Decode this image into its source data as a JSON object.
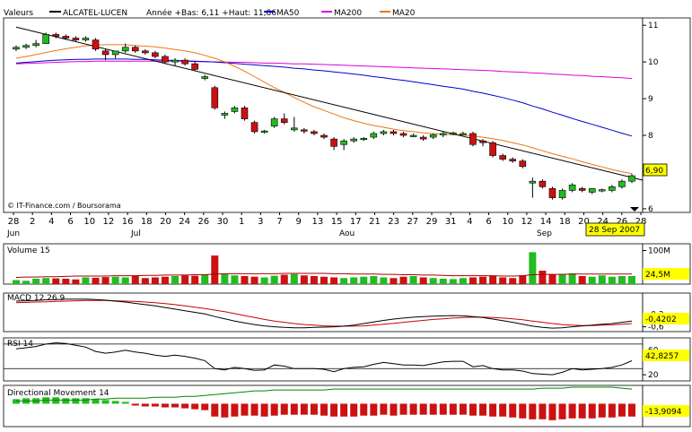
{
  "header": {
    "label": "Valeurs",
    "ticker": "ALCATEL-LUCEN",
    "info": "Année +Bas: 6,11 +Haut: 11,86",
    "legend": [
      {
        "name": "MA50",
        "color": "#0000cc"
      },
      {
        "name": "MA200",
        "color": "#dd00dd"
      },
      {
        "name": "MA20",
        "color": "#ee7711"
      }
    ]
  },
  "watermark": "© IT-Finance.com / Boursorama",
  "price_box": {
    "label": "6,90",
    "bg": "#ffff00"
  },
  "date_box": {
    "label": "28 Sep 2007",
    "bg": "#ffff00"
  },
  "colors": {
    "up": "#22bb22",
    "down": "#cc1111",
    "grid": "#000000"
  },
  "chart_data": [
    {
      "type": "candlestick",
      "title": "ALCATEL-LUCEN",
      "ylim": [
        5.9,
        11.2
      ],
      "yticks": [
        "6",
        "7",
        "8",
        "9",
        "10",
        "11"
      ],
      "xticks": [
        "28",
        "2",
        "4",
        "6",
        "10",
        "12",
        "16",
        "18",
        "20",
        "24",
        "26",
        "30",
        "1",
        "3",
        "7",
        "9",
        "13",
        "15",
        "17",
        "21",
        "23",
        "27",
        "29",
        "31",
        "4",
        "6",
        "10",
        "12",
        "14",
        "18",
        "20",
        "24",
        "26",
        "28"
      ],
      "months": [
        "Jun",
        "Jul",
        "Aou",
        "Sep"
      ],
      "ohlc": [
        [
          10.35,
          10.45,
          10.3,
          10.4
        ],
        [
          10.4,
          10.5,
          10.35,
          10.45
        ],
        [
          10.45,
          10.6,
          10.4,
          10.5
        ],
        [
          10.5,
          10.8,
          10.5,
          10.75
        ],
        [
          10.75,
          10.8,
          10.65,
          10.7
        ],
        [
          10.7,
          10.75,
          10.6,
          10.65
        ],
        [
          10.65,
          10.7,
          10.55,
          10.6
        ],
        [
          10.6,
          10.7,
          10.55,
          10.65
        ],
        [
          10.6,
          10.65,
          10.3,
          10.35
        ],
        [
          10.3,
          10.35,
          10.05,
          10.2
        ],
        [
          10.2,
          10.3,
          10.1,
          10.3
        ],
        [
          10.3,
          10.5,
          10.25,
          10.4
        ],
        [
          10.4,
          10.45,
          10.25,
          10.3
        ],
        [
          10.3,
          10.35,
          10.2,
          10.25
        ],
        [
          10.25,
          10.3,
          10.1,
          10.15
        ],
        [
          10.15,
          10.2,
          9.95,
          10.0
        ],
        [
          10.0,
          10.1,
          9.9,
          10.05
        ],
        [
          10.05,
          10.1,
          9.9,
          9.95
        ],
        [
          9.95,
          10.0,
          9.75,
          9.8
        ],
        [
          9.55,
          9.65,
          9.5,
          9.6
        ],
        [
          9.3,
          9.35,
          8.7,
          8.75
        ],
        [
          8.55,
          8.65,
          8.45,
          8.6
        ],
        [
          8.65,
          8.8,
          8.6,
          8.75
        ],
        [
          8.75,
          8.8,
          8.4,
          8.45
        ],
        [
          8.35,
          8.4,
          8.05,
          8.1
        ],
        [
          8.1,
          8.15,
          8.05,
          8.12
        ],
        [
          8.25,
          8.5,
          8.2,
          8.45
        ],
        [
          8.45,
          8.6,
          8.3,
          8.35
        ],
        [
          8.15,
          8.5,
          8.1,
          8.2
        ],
        [
          8.15,
          8.2,
          8.05,
          8.12
        ],
        [
          8.1,
          8.15,
          8.0,
          8.05
        ],
        [
          8.0,
          8.05,
          7.9,
          7.95
        ],
        [
          7.9,
          7.95,
          7.6,
          7.7
        ],
        [
          7.75,
          7.9,
          7.6,
          7.85
        ],
        [
          7.85,
          7.95,
          7.8,
          7.9
        ],
        [
          7.9,
          7.95,
          7.85,
          7.92
        ],
        [
          7.95,
          8.1,
          7.9,
          8.05
        ],
        [
          8.05,
          8.15,
          8.0,
          8.1
        ],
        [
          8.1,
          8.15,
          8.0,
          8.05
        ],
        [
          8.05,
          8.1,
          7.95,
          8.0
        ],
        [
          8.0,
          8.05,
          7.95,
          8.0
        ],
        [
          7.95,
          8.0,
          7.85,
          7.9
        ],
        [
          7.95,
          8.05,
          7.9,
          8.02
        ],
        [
          8.02,
          8.1,
          7.95,
          8.05
        ],
        [
          8.05,
          8.1,
          8.0,
          8.07
        ],
        [
          8.05,
          8.1,
          8.0,
          8.05
        ],
        [
          8.05,
          8.1,
          7.7,
          7.75
        ],
        [
          7.85,
          7.9,
          7.7,
          7.8
        ],
        [
          7.8,
          7.85,
          7.4,
          7.45
        ],
        [
          7.45,
          7.5,
          7.3,
          7.35
        ],
        [
          7.35,
          7.4,
          7.25,
          7.3
        ],
        [
          7.3,
          7.35,
          7.1,
          7.15
        ],
        [
          6.7,
          6.85,
          6.3,
          6.75
        ],
        [
          6.75,
          6.8,
          6.55,
          6.6
        ],
        [
          6.55,
          6.6,
          6.25,
          6.3
        ],
        [
          6.3,
          6.55,
          6.25,
          6.5
        ],
        [
          6.5,
          6.7,
          6.45,
          6.65
        ],
        [
          6.55,
          6.6,
          6.45,
          6.5
        ],
        [
          6.45,
          6.55,
          6.4,
          6.55
        ],
        [
          6.5,
          6.55,
          6.45,
          6.52
        ],
        [
          6.5,
          6.65,
          6.45,
          6.6
        ],
        [
          6.6,
          6.8,
          6.55,
          6.75
        ],
        [
          6.75,
          6.95,
          6.7,
          6.9
        ]
      ],
      "ma50_values": [
        9.97,
        9.99,
        10.01,
        10.03,
        10.05,
        10.06,
        10.07,
        10.07,
        10.08,
        10.08,
        10.08,
        10.08,
        10.07,
        10.07,
        10.06,
        10.05,
        10.04,
        10.03,
        10.02,
        10.01,
        10.0,
        9.98,
        9.96,
        9.94,
        9.92,
        9.9,
        9.88,
        9.86,
        9.83,
        9.81,
        9.78,
        9.76,
        9.73,
        9.7,
        9.67,
        9.64,
        9.6,
        9.57,
        9.53,
        9.5,
        9.46,
        9.42,
        9.38,
        9.34,
        9.3,
        9.26,
        9.2,
        9.15,
        9.09,
        9.03,
        8.96,
        8.89,
        8.8,
        8.72,
        8.63,
        8.55,
        8.46,
        8.38,
        8.3,
        8.22,
        8.14,
        8.06,
        7.98
      ],
      "ma200_values": [
        9.95,
        9.96,
        9.97,
        9.98,
        9.99,
        10.0,
        10.01,
        10.01,
        10.02,
        10.02,
        10.02,
        10.02,
        10.02,
        10.02,
        10.02,
        10.02,
        10.02,
        10.02,
        10.01,
        10.01,
        10.0,
        10.0,
        9.99,
        9.99,
        9.98,
        9.97,
        9.97,
        9.96,
        9.95,
        9.95,
        9.94,
        9.93,
        9.92,
        9.91,
        9.9,
        9.89,
        9.88,
        9.87,
        9.86,
        9.85,
        9.84,
        9.83,
        9.82,
        9.81,
        9.8,
        9.79,
        9.78,
        9.77,
        9.76,
        9.74,
        9.73,
        9.72,
        9.7,
        9.69,
        9.67,
        9.66,
        9.64,
        9.63,
        9.61,
        9.6,
        9.58,
        9.57,
        9.55
      ],
      "ma20_values": [
        10.1,
        10.15,
        10.2,
        10.26,
        10.31,
        10.36,
        10.4,
        10.44,
        10.46,
        10.47,
        10.47,
        10.47,
        10.45,
        10.43,
        10.41,
        10.38,
        10.34,
        10.3,
        10.25,
        10.18,
        10.1,
        10.0,
        9.88,
        9.75,
        9.6,
        9.45,
        9.3,
        9.17,
        9.03,
        8.9,
        8.78,
        8.68,
        8.58,
        8.48,
        8.4,
        8.33,
        8.27,
        8.22,
        8.17,
        8.13,
        8.1,
        8.07,
        8.05,
        8.03,
        8.02,
        8.01,
        7.98,
        7.95,
        7.91,
        7.86,
        7.8,
        7.74,
        7.66,
        7.58,
        7.5,
        7.43,
        7.36,
        7.28,
        7.21,
        7.14,
        7.07,
        7.01,
        6.96
      ],
      "trendline": [
        [
          0,
          10.95
        ],
        [
          62,
          6.98
        ]
      ]
    },
    {
      "type": "bar",
      "title": "Volume 15",
      "ylim": [
        0,
        120
      ],
      "yticks": [
        "100M"
      ],
      "value_label": "24,5M",
      "values": [
        12,
        10,
        16,
        18,
        17,
        16,
        14,
        20,
        19,
        21,
        22,
        20,
        24,
        18,
        20,
        22,
        24,
        26,
        25,
        28,
        85,
        30,
        26,
        24,
        22,
        20,
        25,
        28,
        30,
        26,
        24,
        22,
        20,
        18,
        20,
        22,
        24,
        20,
        18,
        22,
        24,
        20,
        18,
        16,
        15,
        18,
        20,
        22,
        24,
        20,
        18,
        26,
        95,
        40,
        28,
        30,
        32,
        24,
        22,
        26,
        22,
        24,
        24
      ],
      "avg_values": [
        20,
        21,
        21,
        22,
        22,
        23,
        24,
        24,
        24,
        24,
        25,
        25,
        25,
        26,
        26,
        27,
        27,
        27,
        28,
        28,
        30,
        31,
        31,
        31,
        31,
        31,
        31,
        32,
        32,
        32,
        32,
        32,
        31,
        31,
        30,
        30,
        30,
        29,
        29,
        28,
        28,
        27,
        27,
        26,
        25,
        25,
        25,
        25,
        25,
        24,
        24,
        25,
        28,
        29,
        29,
        29,
        30,
        30,
        30,
        30,
        30,
        30,
        30
      ]
    },
    {
      "type": "line",
      "title": "MACD 12 26 9",
      "ylim": [
        -0.75,
        0.45
      ],
      "yticks": [
        "-0,2",
        "-0,6"
      ],
      "value_label": "-0,4202",
      "macd_values": [
        0.2,
        0.21,
        0.22,
        0.24,
        0.25,
        0.26,
        0.26,
        0.26,
        0.25,
        0.23,
        0.2,
        0.17,
        0.13,
        0.09,
        0.05,
        0.0,
        -0.05,
        -0.1,
        -0.15,
        -0.2,
        -0.28,
        -0.35,
        -0.42,
        -0.48,
        -0.53,
        -0.57,
        -0.6,
        -0.62,
        -0.63,
        -0.63,
        -0.62,
        -0.61,
        -0.6,
        -0.58,
        -0.55,
        -0.5,
        -0.45,
        -0.4,
        -0.36,
        -0.33,
        -0.3,
        -0.28,
        -0.27,
        -0.26,
        -0.25,
        -0.26,
        -0.28,
        -0.31,
        -0.36,
        -0.41,
        -0.46,
        -0.52,
        -0.58,
        -0.62,
        -0.64,
        -0.63,
        -0.6,
        -0.57,
        -0.55,
        -0.52,
        -0.5,
        -0.46,
        -0.42
      ],
      "signal_values": [
        0.15,
        0.16,
        0.17,
        0.18,
        0.19,
        0.2,
        0.21,
        0.22,
        0.22,
        0.22,
        0.21,
        0.2,
        0.19,
        0.17,
        0.15,
        0.12,
        0.09,
        0.05,
        0.01,
        -0.03,
        -0.08,
        -0.13,
        -0.19,
        -0.25,
        -0.31,
        -0.37,
        -0.42,
        -0.46,
        -0.5,
        -0.53,
        -0.55,
        -0.57,
        -0.58,
        -0.58,
        -0.58,
        -0.57,
        -0.55,
        -0.52,
        -0.49,
        -0.46,
        -0.43,
        -0.4,
        -0.37,
        -0.35,
        -0.33,
        -0.31,
        -0.3,
        -0.3,
        -0.31,
        -0.33,
        -0.35,
        -0.38,
        -0.42,
        -0.46,
        -0.5,
        -0.53,
        -0.55,
        -0.56,
        -0.56,
        -0.55,
        -0.54,
        -0.52,
        -0.5
      ]
    },
    {
      "type": "line",
      "title": "RSI 14",
      "ylim": [
        10,
        80
      ],
      "yticks": [
        "60",
        "20"
      ],
      "value_label": "42,8257",
      "reference_lines": [
        70,
        30
      ],
      "values": [
        62,
        64,
        66,
        70,
        72,
        71,
        68,
        65,
        58,
        55,
        57,
        60,
        57,
        55,
        52,
        50,
        52,
        50,
        47,
        43,
        30,
        28,
        32,
        30,
        27,
        28,
        36,
        34,
        30,
        30,
        30,
        29,
        25,
        30,
        32,
        33,
        37,
        40,
        38,
        36,
        36,
        35,
        38,
        41,
        42,
        42,
        33,
        35,
        30,
        28,
        28,
        26,
        22,
        21,
        20,
        24,
        30,
        28,
        29,
        30,
        32,
        36,
        42.8
      ]
    },
    {
      "type": "bar",
      "title": "Directional Movement 14",
      "ylim": [
        -25,
        20
      ],
      "value_label": "-13,9094",
      "line_values": [
        3,
        3,
        3,
        4,
        4,
        4,
        4,
        4,
        5,
        5,
        6,
        6,
        6,
        6,
        7,
        7,
        7,
        8,
        8,
        9,
        10,
        11,
        12,
        13,
        14,
        14,
        15,
        15,
        15,
        15,
        15,
        15,
        16,
        16,
        16,
        16,
        16,
        16,
        16,
        16,
        16,
        16,
        16,
        16,
        16,
        16,
        16,
        16,
        16,
        16,
        16,
        16,
        16,
        17,
        17,
        17,
        18,
        18,
        18,
        18,
        18,
        17,
        16
      ],
      "values": [
        5,
        6,
        6,
        7,
        7,
        6,
        6,
        6,
        5,
        4,
        3,
        2,
        -2,
        -3,
        -3,
        -4,
        -4,
        -5,
        -6,
        -7,
        -14,
        -15,
        -14,
        -13,
        -13,
        -14,
        -13,
        -12,
        -12,
        -12,
        -12,
        -13,
        -14,
        -14,
        -14,
        -13,
        -13,
        -12,
        -13,
        -12,
        -12,
        -12,
        -12,
        -12,
        -12,
        -12,
        -13,
        -13,
        -14,
        -14,
        -15,
        -16,
        -17,
        -17,
        -18,
        -17,
        -16,
        -16,
        -16,
        -15,
        -15,
        -14,
        -14
      ]
    }
  ]
}
